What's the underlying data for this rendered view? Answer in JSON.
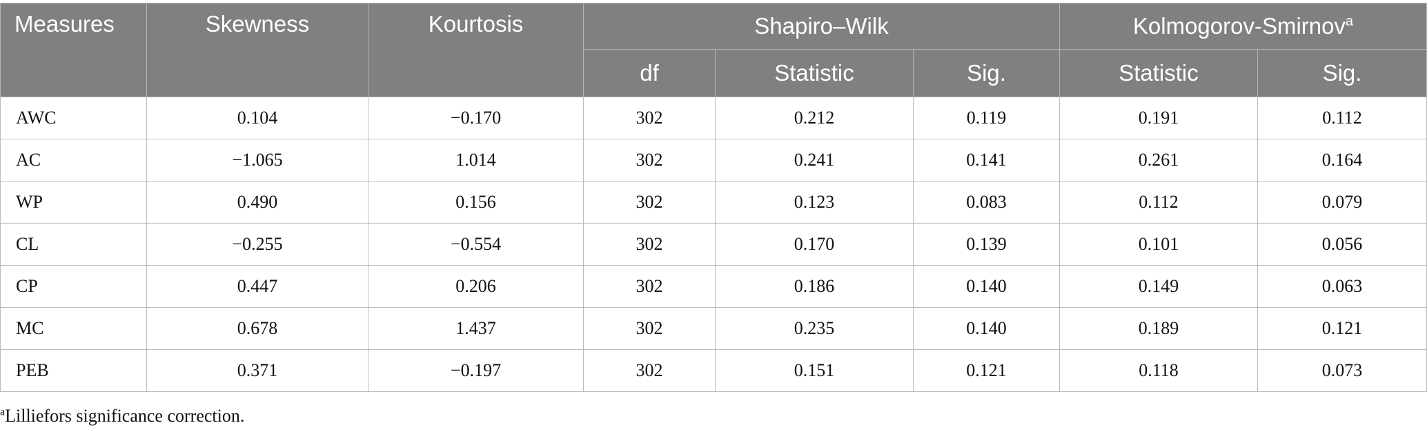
{
  "header": {
    "measures": "Measures",
    "skewness": "Skewness",
    "kurtosis": "Kourtosis",
    "shapiro_wilk": "Shapiro–Wilk",
    "kolmogorov": "Kolmogorov-Smirnov",
    "kolmogorov_sup": "a",
    "df": "df",
    "sw_statistic": "Statistic",
    "sw_sig": "Sig.",
    "ks_statistic": "Statistic",
    "ks_sig": "Sig."
  },
  "rows": [
    {
      "measure": "AWC",
      "skewness": "0.104",
      "kurtosis": "−0.170",
      "df": "302",
      "sw_stat": "0.212",
      "sw_sig": "0.119",
      "ks_stat": "0.191",
      "ks_sig": "0.112"
    },
    {
      "measure": "AC",
      "skewness": "−1.065",
      "kurtosis": "1.014",
      "df": "302",
      "sw_stat": "0.241",
      "sw_sig": "0.141",
      "ks_stat": "0.261",
      "ks_sig": "0.164"
    },
    {
      "measure": "WP",
      "skewness": "0.490",
      "kurtosis": "0.156",
      "df": "302",
      "sw_stat": "0.123",
      "sw_sig": "0.083",
      "ks_stat": "0.112",
      "ks_sig": "0.079"
    },
    {
      "measure": "CL",
      "skewness": "−0.255",
      "kurtosis": "−0.554",
      "df": "302",
      "sw_stat": "0.170",
      "sw_sig": "0.139",
      "ks_stat": "0.101",
      "ks_sig": "0.056"
    },
    {
      "measure": "CP",
      "skewness": "0.447",
      "kurtosis": "0.206",
      "df": "302",
      "sw_stat": "0.186",
      "sw_sig": "0.140",
      "ks_stat": "0.149",
      "ks_sig": "0.063"
    },
    {
      "measure": "MC",
      "skewness": "0.678",
      "kurtosis": "1.437",
      "df": "302",
      "sw_stat": "0.235",
      "sw_sig": "0.140",
      "ks_stat": "0.189",
      "ks_sig": "0.121"
    },
    {
      "measure": "PEB",
      "skewness": "0.371",
      "kurtosis": "−0.197",
      "df": "302",
      "sw_stat": "0.151",
      "sw_sig": "0.121",
      "ks_stat": "0.118",
      "ks_sig": "0.073"
    }
  ],
  "footnote": {
    "marker": "a",
    "text": "Lilliefors significance correction."
  }
}
